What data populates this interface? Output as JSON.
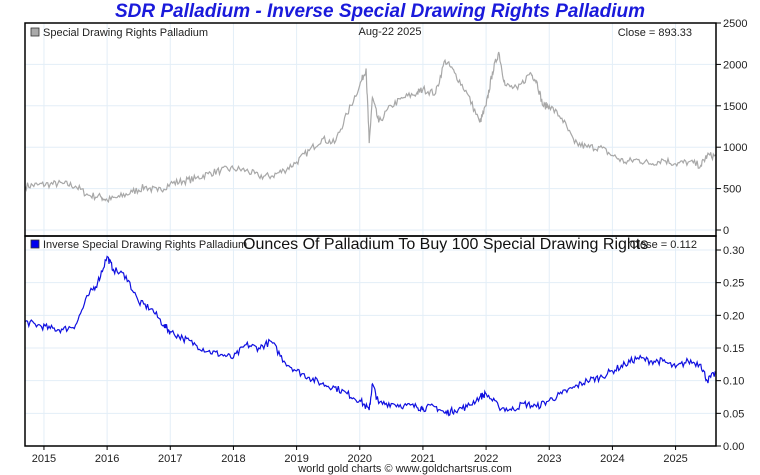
{
  "chart_data": [
    {
      "type": "line",
      "title": "SDR Palladium - Inverse Special Drawing Rights Palladium",
      "legend": "Special Drawing Rights Palladium",
      "legend_color": "#aaaaaa",
      "date_label": "Aug-22  2025",
      "close_label": "Close = 893.33",
      "line_color": "#a8a8a8",
      "ylim": [
        0,
        2500
      ],
      "yticks": [
        "2500",
        "2000",
        "1500",
        "1000",
        "500",
        "0"
      ],
      "ytick_values": [
        2500,
        2000,
        1500,
        1000,
        500,
        0
      ],
      "xlim": [
        2014.7,
        2025.64
      ],
      "x": [
        2014.7,
        2014.9,
        2015.1,
        2015.3,
        2015.5,
        2015.7,
        2015.9,
        2016.0,
        2016.2,
        2016.4,
        2016.6,
        2016.8,
        2017.0,
        2017.2,
        2017.4,
        2017.6,
        2017.8,
        2018.0,
        2018.2,
        2018.4,
        2018.6,
        2018.8,
        2019.0,
        2019.2,
        2019.4,
        2019.6,
        2019.8,
        2020.0,
        2020.1,
        2020.15,
        2020.2,
        2020.3,
        2020.5,
        2020.7,
        2020.9,
        2021.0,
        2021.2,
        2021.35,
        2021.5,
        2021.7,
        2021.9,
        2022.0,
        2022.1,
        2022.2,
        2022.3,
        2022.5,
        2022.7,
        2022.8,
        2022.9,
        2023.0,
        2023.2,
        2023.4,
        2023.6,
        2023.8,
        2024.0,
        2024.2,
        2024.4,
        2024.6,
        2024.8,
        2025.0,
        2025.2,
        2025.4,
        2025.5,
        2025.64
      ],
      "values": [
        530,
        545,
        555,
        560,
        530,
        420,
        400,
        360,
        400,
        460,
        520,
        470,
        560,
        590,
        620,
        680,
        720,
        740,
        720,
        650,
        650,
        720,
        820,
        960,
        1100,
        1050,
        1400,
        1750,
        1950,
        1050,
        1600,
        1300,
        1500,
        1600,
        1650,
        1700,
        1650,
        2050,
        1900,
        1650,
        1300,
        1500,
        1900,
        2150,
        1750,
        1700,
        1900,
        1800,
        1500,
        1500,
        1350,
        1050,
        1000,
        1000,
        900,
        820,
        850,
        800,
        850,
        800,
        820,
        780,
        900,
        893.33
      ]
    },
    {
      "type": "line",
      "legend": "Inverse Special Drawing Rights Palladium",
      "legend_color": "#0000ee",
      "subtitle": "Ounces Of Palladium To Buy 100 Special Drawing Rights",
      "close_label": "Close = 0.112",
      "line_color": "#1010e0",
      "ylim": [
        0,
        0.3
      ],
      "yticks": [
        "0.30",
        "0.25",
        "0.20",
        "0.15",
        "0.10",
        "0.05",
        "0.00"
      ],
      "ytick_values": [
        0.3,
        0.25,
        0.2,
        0.15,
        0.1,
        0.05,
        0.0
      ],
      "xlim": [
        2014.7,
        2025.64
      ],
      "x": [
        2014.7,
        2014.9,
        2015.1,
        2015.3,
        2015.5,
        2015.7,
        2015.85,
        2016.0,
        2016.1,
        2016.3,
        2016.5,
        2016.7,
        2016.9,
        2017.0,
        2017.2,
        2017.4,
        2017.6,
        2017.8,
        2018.0,
        2018.2,
        2018.4,
        2018.6,
        2018.8,
        2019.0,
        2019.2,
        2019.4,
        2019.6,
        2019.8,
        2020.0,
        2020.15,
        2020.2,
        2020.3,
        2020.5,
        2020.7,
        2020.9,
        2021.0,
        2021.2,
        2021.35,
        2021.5,
        2021.7,
        2021.9,
        2022.0,
        2022.2,
        2022.4,
        2022.6,
        2022.8,
        2023.0,
        2023.2,
        2023.4,
        2023.6,
        2023.8,
        2024.0,
        2024.2,
        2024.4,
        2024.6,
        2024.8,
        2025.0,
        2025.2,
        2025.4,
        2025.5,
        2025.64
      ],
      "values": [
        0.19,
        0.185,
        0.18,
        0.178,
        0.185,
        0.23,
        0.25,
        0.29,
        0.27,
        0.26,
        0.22,
        0.21,
        0.185,
        0.175,
        0.165,
        0.155,
        0.145,
        0.14,
        0.135,
        0.155,
        0.15,
        0.16,
        0.13,
        0.115,
        0.105,
        0.095,
        0.09,
        0.08,
        0.07,
        0.055,
        0.095,
        0.065,
        0.065,
        0.062,
        0.06,
        0.058,
        0.06,
        0.05,
        0.055,
        0.06,
        0.075,
        0.08,
        0.06,
        0.055,
        0.065,
        0.06,
        0.07,
        0.08,
        0.09,
        0.1,
        0.105,
        0.115,
        0.125,
        0.135,
        0.13,
        0.13,
        0.12,
        0.13,
        0.125,
        0.1,
        0.112
      ]
    }
  ],
  "x_axis": {
    "ticks": [
      "2015",
      "2016",
      "2017",
      "2018",
      "2019",
      "2020",
      "2021",
      "2022",
      "2023",
      "2024",
      "2025"
    ],
    "tick_values": [
      2015,
      2016,
      2017,
      2018,
      2019,
      2020,
      2021,
      2022,
      2023,
      2024,
      2025
    ]
  },
  "credit": "world gold charts © www.goldchartsrus.com",
  "colors": {
    "title": "#1a1adb",
    "grid": "#e3eef7",
    "frame": "#000000"
  }
}
